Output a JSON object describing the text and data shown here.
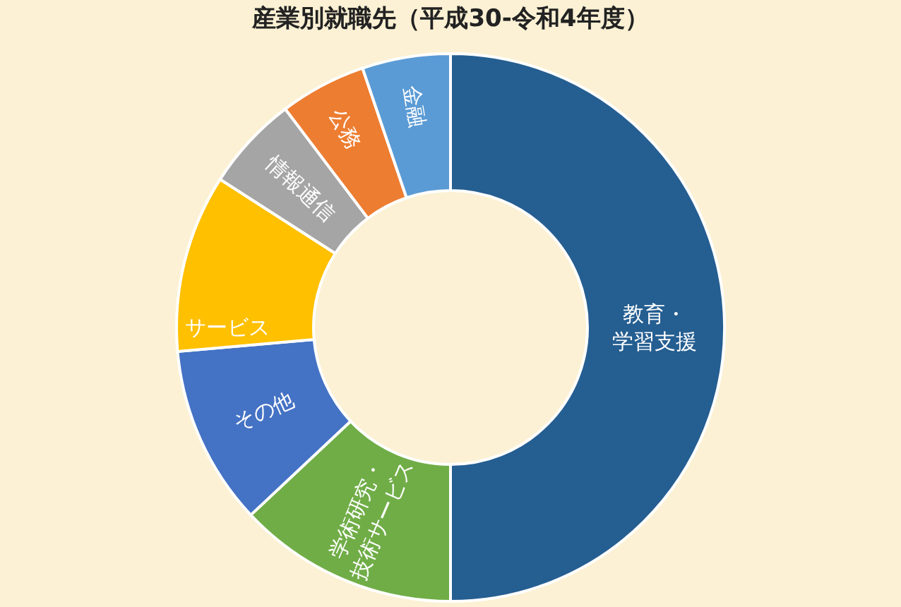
{
  "chart_data": {
    "type": "donut",
    "title": "産業別就職先（平成30-令和4年度）",
    "categories": [
      "教育・学習支援",
      "学術研究・技術サービス",
      "その他",
      "サービス",
      "情報通信",
      "公務",
      "金融"
    ],
    "values": [
      50,
      13,
      10.6,
      10.5,
      5.6,
      5.1,
      5.2
    ],
    "colors": [
      "#255e91",
      "#70ad47",
      "#4472c4",
      "#ffc000",
      "#a5a5a5",
      "#ed7d31",
      "#5b9bd5"
    ],
    "legend": false
  }
}
